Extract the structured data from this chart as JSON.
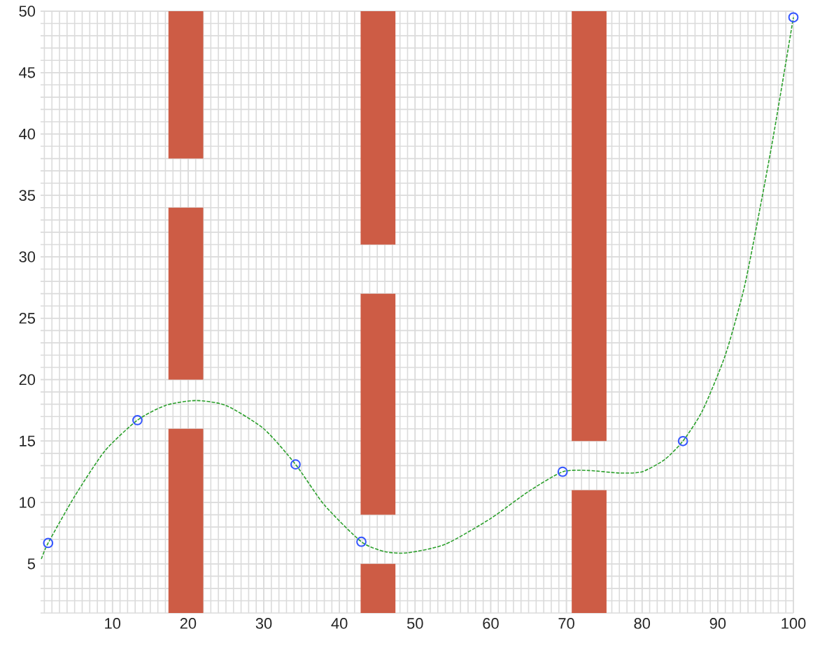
{
  "chart_data": {
    "type": "bar",
    "xlim": [
      0.5,
      100
    ],
    "ylim": [
      1,
      50
    ],
    "xticks": [
      10,
      20,
      30,
      40,
      50,
      60,
      70,
      80,
      90,
      100
    ],
    "yticks": [
      5,
      10,
      15,
      20,
      25,
      30,
      35,
      40,
      45,
      50
    ],
    "grid": true,
    "series": [
      {
        "color": "#cd5c45",
        "x": [
          19.7,
          45.1,
          73
        ],
        "base": [
          1,
          1,
          1
        ],
        "values": [
          15,
          4,
          10
        ]
      },
      {
        "color": "#cd5c45",
        "x": [
          19.7,
          45.1,
          73
        ],
        "base": [
          20,
          9,
          15
        ],
        "values": [
          14,
          18,
          35
        ]
      },
      {
        "color": "#cd5c45",
        "x": [
          19.7,
          45.1
        ],
        "base": [
          38,
          31
        ],
        "values": [
          12,
          19
        ]
      },
      {
        "type": "line",
        "color": "#2ca02c",
        "line_style": "dashed",
        "marker": "none",
        "x": [
          0.6,
          1.5,
          5,
          9,
          13.3,
          17,
          21,
          25,
          30,
          34.2,
          38,
          42.9,
          46,
          49,
          54,
          60,
          65,
          69.5,
          73,
          77,
          80,
          83,
          85.4,
          88,
          91,
          93.5,
          95.6,
          97.4,
          100
        ],
        "values": [
          5.4,
          6.7,
          10.5,
          14.2,
          16.7,
          17.9,
          18.3,
          17.9,
          16,
          13.1,
          9.8,
          6.8,
          6,
          5.9,
          6.6,
          8.7,
          10.9,
          12.5,
          12.6,
          12.4,
          12.5,
          13.5,
          15,
          17.5,
          22,
          27.5,
          34,
          40,
          49.5
        ]
      },
      {
        "type": "scatter",
        "color": "#3355ff",
        "marker": "circle",
        "x": [
          1.5,
          13.3,
          34.2,
          42.9,
          69.5,
          85.4,
          100
        ],
        "values": [
          6.7,
          16.7,
          13.1,
          6.8,
          12.5,
          15,
          49.5
        ]
      }
    ]
  }
}
